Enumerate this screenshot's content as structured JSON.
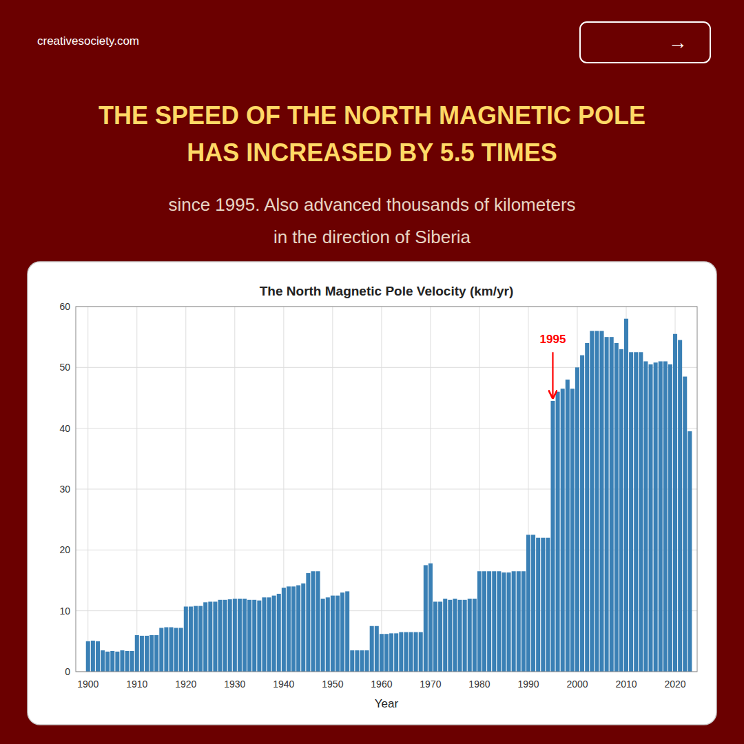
{
  "header": {
    "watermark": "creativesociety.com",
    "button_label": "→",
    "heading": [
      "THE SPEED OF THE NORTH MAGNETIC POLE",
      "HAS INCREASED BY 5.5 TIMES"
    ],
    "subtext": [
      "since 1995. Also advanced thousands of kilometers",
      "in the direction of Siberia"
    ]
  },
  "chart_data": {
    "type": "bar",
    "title": "The North Magnetic Pole Velocity (km/yr)",
    "xlabel": "Year",
    "color": "#3A80B5",
    "grid": true,
    "xlim": [
      1897.5,
      2024.5
    ],
    "xticks": [
      1900,
      1910,
      1920,
      1930,
      1940,
      1950,
      1960,
      1970,
      1980,
      1990,
      2000,
      2010,
      2020
    ],
    "ylim": [
      0,
      60
    ],
    "yticks": [
      0,
      10,
      20,
      30,
      40,
      50,
      60
    ],
    "x": [
      1900,
      1901,
      1902,
      1903,
      1904,
      1905,
      1906,
      1907,
      1908,
      1909,
      1910,
      1911,
      1912,
      1913,
      1914,
      1915,
      1916,
      1917,
      1918,
      1919,
      1920,
      1921,
      1922,
      1923,
      1924,
      1925,
      1926,
      1927,
      1928,
      1929,
      1930,
      1931,
      1932,
      1933,
      1934,
      1935,
      1936,
      1937,
      1938,
      1939,
      1940,
      1941,
      1942,
      1943,
      1944,
      1945,
      1946,
      1947,
      1948,
      1949,
      1950,
      1951,
      1952,
      1953,
      1954,
      1955,
      1956,
      1957,
      1958,
      1959,
      1960,
      1961,
      1962,
      1963,
      1964,
      1965,
      1966,
      1967,
      1968,
      1969,
      1970,
      1971,
      1972,
      1973,
      1974,
      1975,
      1976,
      1977,
      1978,
      1979,
      1980,
      1981,
      1982,
      1983,
      1984,
      1985,
      1986,
      1987,
      1988,
      1989,
      1990,
      1991,
      1992,
      1993,
      1994,
      1995,
      1996,
      1997,
      1998,
      1999,
      2000,
      2001,
      2002,
      2003,
      2004,
      2005,
      2006,
      2007,
      2008,
      2009,
      2010,
      2011,
      2012,
      2013,
      2014,
      2015,
      2016,
      2017,
      2018,
      2019,
      2020,
      2021,
      2022,
      2023
    ],
    "values": [
      5.0,
      5.1,
      5.0,
      3.5,
      3.3,
      3.4,
      3.3,
      3.5,
      3.4,
      3.4,
      6.0,
      5.9,
      5.9,
      6.0,
      6.0,
      7.2,
      7.3,
      7.3,
      7.2,
      7.2,
      10.7,
      10.7,
      10.8,
      10.8,
      11.4,
      11.5,
      11.5,
      11.8,
      11.8,
      11.9,
      12.0,
      12.0,
      12.0,
      11.8,
      11.8,
      11.7,
      12.2,
      12.2,
      12.5,
      12.8,
      13.8,
      14.0,
      14.0,
      14.2,
      14.5,
      16.2,
      16.5,
      16.5,
      12.0,
      12.2,
      12.5,
      12.5,
      13.0,
      13.2,
      3.5,
      3.5,
      3.5,
      3.5,
      7.5,
      7.5,
      6.2,
      6.2,
      6.3,
      6.3,
      6.5,
      6.5,
      6.5,
      6.5,
      6.5,
      17.5,
      17.8,
      11.5,
      11.5,
      12.0,
      11.8,
      12.0,
      11.8,
      11.8,
      12.0,
      12.0,
      16.5,
      16.5,
      16.5,
      16.5,
      16.5,
      16.3,
      16.3,
      16.5,
      16.5,
      16.5,
      22.5,
      22.5,
      22.0,
      22.0,
      22.0,
      44.5,
      46.0,
      46.5,
      48.0,
      46.5,
      50.0,
      52.0,
      54.0,
      56.0,
      56.0,
      56.0,
      55.0,
      55.0,
      54.0,
      53.0,
      58.0,
      52.5,
      52.5,
      52.5,
      51.0,
      50.5,
      50.8,
      51.0,
      51.0,
      50.5,
      55.5,
      54.5,
      48.5,
      39.5
    ],
    "annotations": [
      {
        "text": "1995",
        "x": 1995,
        "color": "red"
      }
    ]
  }
}
